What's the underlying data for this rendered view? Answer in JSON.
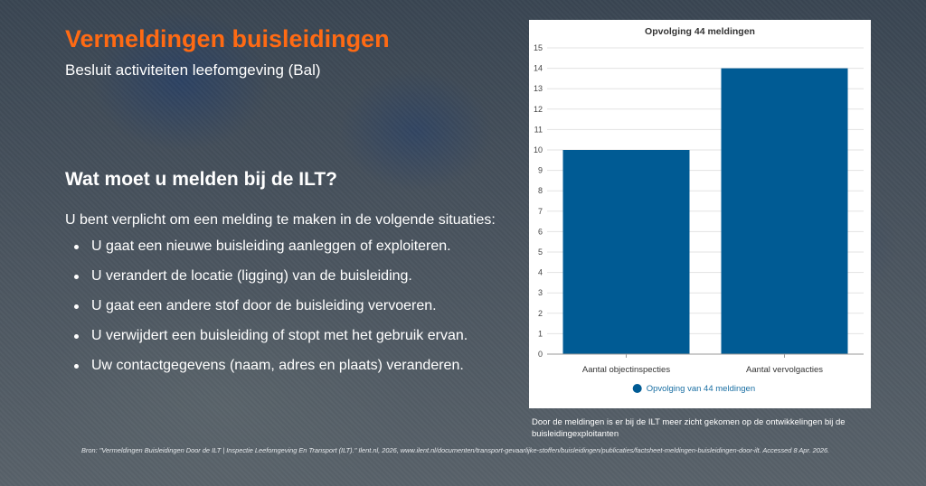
{
  "slide": {
    "title": "Vermeldingen buisleidingen",
    "subtitle": "Besluit activiteiten leefomgeving (Bal)",
    "section_heading": "Wat moet u melden bij de ILT?",
    "intro": "U bent verplicht om een melding te maken in de volgende situaties:",
    "bullets": [
      "U gaat een nieuwe buisleiding aanleggen of exploiteren.",
      "U verandert de locatie (ligging) van de buisleiding.",
      "U gaat een andere stof door de buisleiding vervoeren.",
      "U verwijdert een buisleiding of stopt met het gebruik ervan.",
      "Uw contactgegevens (naam, adres en plaats) veranderen."
    ],
    "chart_caption": "Door de meldingen is er bij de ILT meer zicht gekomen op de ontwikkelingen bij de buisleidingexploitanten",
    "source": "Bron: \"Vermeldingen Buisleidingen Door de ILT | Inspectie Leefomgeving En Transport (ILT).\" Ilent.nl, 2026, www.ilent.nl/documenten/transport-gevaarlijke-stoffen/buisleidingen/publicaties/factsheet-meldingen-buisleidingen-door-ilt. Accessed 8 Apr. 2026."
  },
  "colors": {
    "title_orange": "#ff6a13",
    "bar_blue": "#005b94",
    "legend_text": "#1a6fa3"
  },
  "chart_data": {
    "type": "bar",
    "title": "Opvolging 44 meldingen",
    "categories": [
      "Aantal objectinspecties",
      "Aantal vervolgacties"
    ],
    "series": [
      {
        "name": "Opvolging van 44 meldingen",
        "values": [
          10,
          14
        ]
      }
    ],
    "ylim": [
      0,
      15
    ],
    "yticks": [
      0,
      1,
      2,
      3,
      4,
      5,
      6,
      7,
      8,
      9,
      10,
      11,
      12,
      13,
      14,
      15
    ],
    "grid": true,
    "legend": "bottom"
  }
}
